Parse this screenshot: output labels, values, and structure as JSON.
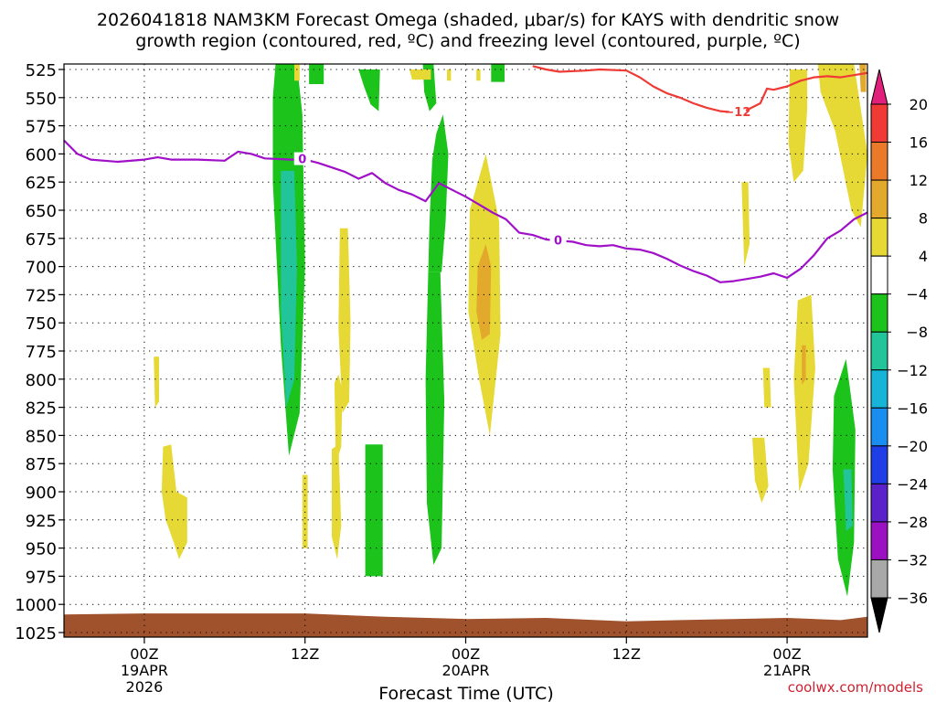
{
  "title": {
    "line1": "2026041818 NAM3KM Forecast Omega (shaded, μbar/s) for KAYS with dendritic snow",
    "line2": "growth region (contoured, red, ºC) and freezing level (contoured, purple, ºC)"
  },
  "xlabel": "Forecast Time (UTC)",
  "credit": "coolwx.com/models",
  "chart_data": {
    "type": "time-height",
    "title": "2026041818 NAM3KM Forecast Omega (shaded, μbar/s) for KAYS with dendritic snow growth region (contoured, red, ºC) and freezing level (contoured, purple, ºC)",
    "xlabel": "Forecast Time (UTC)",
    "x_start_hour": -6,
    "x_end_hour": 54,
    "x_ticks": [
      {
        "hour": 0,
        "lines": [
          "00Z",
          "19APR",
          "2026"
        ]
      },
      {
        "hour": 12,
        "lines": [
          "12Z"
        ]
      },
      {
        "hour": 24,
        "lines": [
          "00Z",
          "20APR"
        ]
      },
      {
        "hour": 36,
        "lines": [
          "12Z"
        ]
      },
      {
        "hour": 48,
        "lines": [
          "00Z",
          "21APR"
        ]
      }
    ],
    "y_levels": [
      525,
      550,
      575,
      600,
      625,
      650,
      675,
      700,
      725,
      750,
      775,
      800,
      825,
      850,
      875,
      900,
      925,
      950,
      975,
      1000,
      1025
    ],
    "y_range": [
      525,
      1025
    ],
    "grid": "dotted",
    "colorbar": {
      "labels": [
        "20",
        "16",
        "12",
        "8",
        "4",
        "−4",
        "−8",
        "−12",
        "−16",
        "−20",
        "−24",
        "−28",
        "−32",
        "−36"
      ],
      "colors": [
        "#e0207a",
        "#ef3a36",
        "#ea7a2a",
        "#e3a92c",
        "#e6d835",
        "#ffffff",
        "#1bc31b",
        "#22c49a",
        "#18b4d8",
        "#1a8ef0",
        "#1f3ee6",
        "#5a22c8",
        "#9b10c0",
        "#a8a8a8",
        "#000000"
      ]
    },
    "freezing_level": {
      "label": "0",
      "color": "#a010c8",
      "points": [
        [
          -6,
          588
        ],
        [
          -5,
          600
        ],
        [
          -4,
          605
        ],
        [
          -2,
          607
        ],
        [
          0,
          605
        ],
        [
          1,
          603
        ],
        [
          2,
          605
        ],
        [
          4,
          605
        ],
        [
          6,
          606
        ],
        [
          7,
          598
        ],
        [
          8,
          600
        ],
        [
          9,
          604
        ],
        [
          11,
          605
        ],
        [
          12,
          605
        ],
        [
          13,
          608
        ],
        [
          14,
          612
        ],
        [
          15,
          616
        ],
        [
          16,
          622
        ],
        [
          17,
          617
        ],
        [
          18,
          626
        ],
        [
          19,
          632
        ],
        [
          20,
          636
        ],
        [
          21,
          642
        ],
        [
          22,
          626
        ],
        [
          23,
          632
        ],
        [
          24,
          638
        ],
        [
          25,
          645
        ],
        [
          26,
          652
        ],
        [
          27,
          658
        ],
        [
          28,
          670
        ],
        [
          29,
          672
        ],
        [
          30,
          676
        ],
        [
          31,
          677
        ],
        [
          32,
          678
        ],
        [
          33,
          681
        ],
        [
          34,
          682
        ],
        [
          35,
          681
        ],
        [
          36,
          684
        ],
        [
          37,
          685
        ],
        [
          38,
          688
        ],
        [
          39,
          693
        ],
        [
          40,
          699
        ],
        [
          41,
          704
        ],
        [
          42,
          708
        ],
        [
          43,
          714
        ],
        [
          44,
          713
        ],
        [
          45,
          711
        ],
        [
          46,
          709
        ],
        [
          47,
          706
        ],
        [
          48,
          710
        ],
        [
          49,
          702
        ],
        [
          50,
          690
        ],
        [
          51,
          675
        ],
        [
          52,
          668
        ],
        [
          53,
          658
        ],
        [
          54,
          652
        ]
      ]
    },
    "dgz_contour": {
      "label": "−12",
      "color": "#ef3a36",
      "points": [
        [
          29,
          522
        ],
        [
          30,
          525
        ],
        [
          31,
          527
        ],
        [
          33,
          526
        ],
        [
          34,
          525
        ],
        [
          36,
          526
        ],
        [
          37,
          532
        ],
        [
          38,
          540
        ],
        [
          39,
          546
        ],
        [
          40,
          550
        ],
        [
          41,
          555
        ],
        [
          42,
          559
        ],
        [
          43,
          562
        ],
        [
          44,
          563
        ],
        [
          45,
          561
        ],
        [
          46,
          555
        ],
        [
          46.5,
          542
        ],
        [
          47,
          543
        ],
        [
          48,
          540
        ],
        [
          49,
          535
        ],
        [
          50,
          532
        ],
        [
          51,
          531
        ],
        [
          52,
          532
        ],
        [
          53,
          530
        ],
        [
          54,
          528
        ]
      ]
    },
    "omega_regions": [
      {
        "color": "#1bc31b",
        "pts": [
          [
            9.8,
            520
          ],
          [
            11.4,
            520
          ],
          [
            11.8,
            565
          ],
          [
            12,
            700
          ],
          [
            11.6,
            830
          ],
          [
            10.8,
            868
          ],
          [
            10.2,
            770
          ],
          [
            9.6,
            625
          ],
          [
            9.6,
            550
          ]
        ]
      },
      {
        "color": "#22c49a",
        "pts": [
          [
            10.2,
            615
          ],
          [
            11.2,
            615
          ],
          [
            11.4,
            700
          ],
          [
            11.2,
            800
          ],
          [
            10.6,
            825
          ],
          [
            10.2,
            740
          ]
        ]
      },
      {
        "color": "#1bc31b",
        "pts": [
          [
            21.2,
            705
          ],
          [
            22.1,
            705
          ],
          [
            22.4,
            820
          ],
          [
            22.2,
            950
          ],
          [
            21.6,
            965
          ],
          [
            21.1,
            910
          ],
          [
            21,
            800
          ]
        ]
      },
      {
        "color": "#1bc31b",
        "pts": [
          [
            21.5,
            605
          ],
          [
            21.8,
            582
          ],
          [
            22.3,
            565
          ],
          [
            22.7,
            600
          ],
          [
            22.5,
            660
          ],
          [
            22.2,
            705
          ],
          [
            21.2,
            705
          ],
          [
            21.3,
            660
          ]
        ]
      },
      {
        "color": "#1bc31b",
        "pts": [
          [
            16,
            525
          ],
          [
            17.6,
            525
          ],
          [
            17.5,
            562
          ],
          [
            16.9,
            556
          ],
          [
            16.4,
            540
          ]
        ]
      },
      {
        "color": "#1bc31b",
        "pts": [
          [
            12.3,
            520
          ],
          [
            13.4,
            520
          ],
          [
            13.4,
            538
          ],
          [
            12.3,
            538
          ]
        ]
      },
      {
        "color": "#1bc31b",
        "pts": [
          [
            16.5,
            858
          ],
          [
            17.8,
            858
          ],
          [
            17.8,
            975
          ],
          [
            16.5,
            975
          ]
        ]
      },
      {
        "color": "#1bc31b",
        "pts": [
          [
            20.8,
            520
          ],
          [
            21.6,
            520
          ],
          [
            21.8,
            555
          ],
          [
            21.3,
            562
          ],
          [
            20.9,
            545
          ]
        ]
      },
      {
        "color": "#1bc31b",
        "pts": [
          [
            25.9,
            520
          ],
          [
            26.9,
            520
          ],
          [
            26.9,
            536
          ],
          [
            25.9,
            536
          ]
        ]
      },
      {
        "color": "#1bc31b",
        "pts": [
          [
            51.5,
            815
          ],
          [
            52.4,
            782
          ],
          [
            53.1,
            845
          ],
          [
            53,
            945
          ],
          [
            52.5,
            993
          ],
          [
            51.8,
            960
          ],
          [
            51.4,
            880
          ]
        ]
      },
      {
        "color": "#22c49a",
        "pts": [
          [
            52.2,
            880
          ],
          [
            52.8,
            880
          ],
          [
            52.9,
            930
          ],
          [
            52.4,
            935
          ]
        ]
      },
      {
        "color": "#e6d835",
        "pts": [
          [
            24.3,
            650
          ],
          [
            25.5,
            600
          ],
          [
            26.5,
            660
          ],
          [
            26.6,
            760
          ],
          [
            25.8,
            850
          ],
          [
            25,
            800
          ],
          [
            24.2,
            740
          ]
        ]
      },
      {
        "color": "#e3a92c",
        "pts": [
          [
            24.9,
            700
          ],
          [
            25.5,
            680
          ],
          [
            25.9,
            700
          ],
          [
            25.8,
            760
          ],
          [
            25.2,
            765
          ],
          [
            24.8,
            740
          ]
        ]
      },
      {
        "color": "#e6d835",
        "pts": [
          [
            48.2,
            525
          ],
          [
            49.5,
            525
          ],
          [
            49.5,
            560
          ],
          [
            49.2,
            615
          ],
          [
            48.5,
            625
          ],
          [
            48.1,
            590
          ]
        ]
      },
      {
        "color": "#e6d835",
        "pts": [
          [
            50.3,
            520
          ],
          [
            53,
            520
          ],
          [
            53.5,
            560
          ],
          [
            54,
            600
          ],
          [
            53.5,
            665
          ],
          [
            52.8,
            650
          ],
          [
            51.6,
            580
          ],
          [
            50.5,
            545
          ]
        ]
      },
      {
        "color": "#e6d835",
        "pts": [
          [
            14.6,
            666
          ],
          [
            15.2,
            666
          ],
          [
            15.4,
            750
          ],
          [
            15.3,
            820
          ],
          [
            14.8,
            830
          ],
          [
            14.5,
            755
          ]
        ]
      },
      {
        "color": "#e6d835",
        "pts": [
          [
            14.2,
            803
          ],
          [
            14.5,
            796
          ],
          [
            14.8,
            810
          ],
          [
            14.7,
            860
          ],
          [
            14.3,
            875
          ]
        ]
      },
      {
        "color": "#e6d835",
        "pts": [
          [
            1.4,
            860
          ],
          [
            2,
            858
          ],
          [
            2.4,
            900
          ],
          [
            3.2,
            905
          ],
          [
            3.2,
            945
          ],
          [
            2.6,
            960
          ],
          [
            2.2,
            945
          ],
          [
            1.6,
            925
          ],
          [
            1.3,
            900
          ]
        ]
      },
      {
        "color": "#e6d835",
        "pts": [
          [
            14,
            862
          ],
          [
            14.5,
            858
          ],
          [
            14.7,
            930
          ],
          [
            14.4,
            960
          ],
          [
            14,
            940
          ]
        ]
      },
      {
        "color": "#e6d835",
        "pts": [
          [
            48.8,
            730
          ],
          [
            49.8,
            725
          ],
          [
            50.1,
            790
          ],
          [
            49.6,
            875
          ],
          [
            48.9,
            900
          ],
          [
            48.5,
            800
          ]
        ]
      },
      {
        "color": "#e3a92c",
        "pts": [
          [
            49.1,
            770
          ],
          [
            49.4,
            770
          ],
          [
            49.4,
            800
          ],
          [
            49.1,
            805
          ]
        ]
      },
      {
        "color": "#e6d835",
        "pts": [
          [
            45.4,
            852
          ],
          [
            46.3,
            852
          ],
          [
            46.6,
            895
          ],
          [
            46.1,
            910
          ],
          [
            45.6,
            890
          ]
        ]
      },
      {
        "color": "#e6d835",
        "pts": [
          [
            44.6,
            625
          ],
          [
            45.1,
            625
          ],
          [
            45.2,
            680
          ],
          [
            44.8,
            700
          ]
        ]
      },
      {
        "color": "#e6d835",
        "pts": [
          [
            0.7,
            780
          ],
          [
            1.1,
            780
          ],
          [
            1.1,
            820
          ],
          [
            0.8,
            825
          ]
        ]
      },
      {
        "color": "#e6d835",
        "pts": [
          [
            46.2,
            790
          ],
          [
            46.7,
            790
          ],
          [
            46.8,
            825
          ],
          [
            46.3,
            825
          ]
        ]
      },
      {
        "color": "#e6d835",
        "pts": [
          [
            11.8,
            885
          ],
          [
            12.2,
            885
          ],
          [
            12.2,
            950
          ],
          [
            11.8,
            950
          ]
        ]
      },
      {
        "color": "#e6d835",
        "pts": [
          [
            11.2,
            520
          ],
          [
            11.6,
            520
          ],
          [
            11.6,
            535
          ],
          [
            11.2,
            535
          ]
        ]
      },
      {
        "color": "#e6d835",
        "pts": [
          [
            19.8,
            525
          ],
          [
            21.4,
            525
          ],
          [
            21.4,
            534
          ],
          [
            20,
            534
          ]
        ]
      },
      {
        "color": "#e6d835",
        "pts": [
          [
            22.6,
            525
          ],
          [
            22.9,
            525
          ],
          [
            22.9,
            535
          ],
          [
            22.6,
            535
          ]
        ]
      },
      {
        "color": "#e6d835",
        "pts": [
          [
            24.8,
            525
          ],
          [
            25.1,
            525
          ],
          [
            25.1,
            535
          ],
          [
            24.8,
            535
          ]
        ]
      },
      {
        "color": "#e3a92c",
        "pts": [
          [
            53.4,
            520
          ],
          [
            53.9,
            520
          ],
          [
            53.9,
            545
          ],
          [
            53.5,
            545
          ]
        ]
      }
    ],
    "surface": {
      "color": "#a0522d",
      "top_points": [
        [
          -6,
          1009
        ],
        [
          0,
          1008
        ],
        [
          6,
          1008
        ],
        [
          12,
          1008
        ],
        [
          18,
          1011
        ],
        [
          24,
          1013
        ],
        [
          30,
          1012
        ],
        [
          36,
          1015
        ],
        [
          40,
          1014
        ],
        [
          44,
          1013
        ],
        [
          48,
          1012
        ],
        [
          52,
          1014
        ],
        [
          54,
          1011
        ]
      ]
    }
  }
}
